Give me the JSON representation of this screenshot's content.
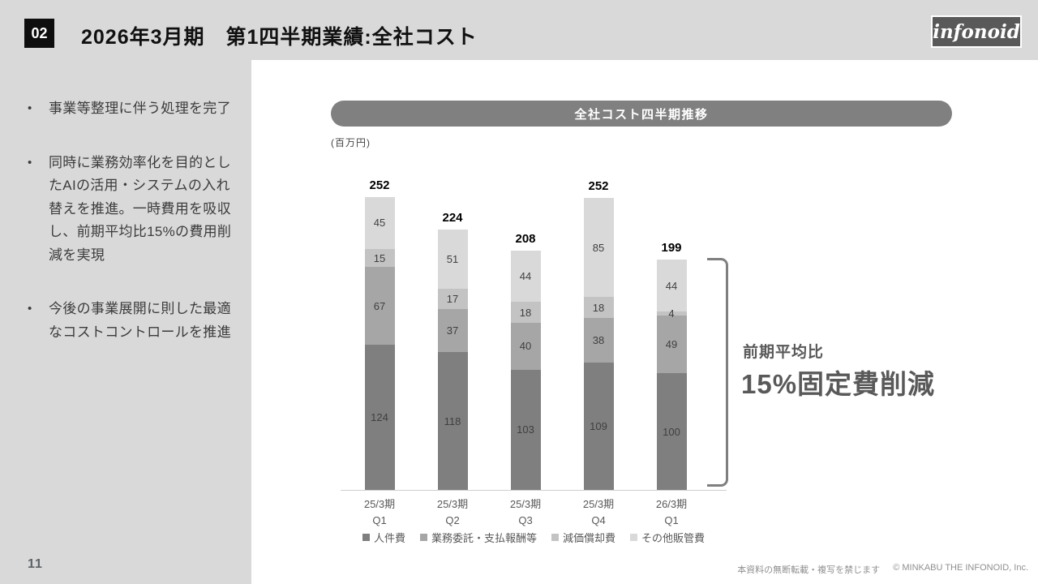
{
  "header": {
    "badge": "02",
    "title": "2026年3月期　第1四半期業績:全社コスト",
    "logo": "infonoid"
  },
  "sidebar": {
    "bullets": [
      "事業等整理に伴う処理を完了",
      "同時に業務効率化を目的としたAIの活用・システムの入れ替えを推進。一時費用を吸収し、前期平均比15%の費用削減を実現",
      "今後の事業展開に則した最適なコストコントロールを推進"
    ]
  },
  "chart_data": {
    "type": "bar",
    "stacked": true,
    "title": "全社コスト四半期推移",
    "unit_label": "(百万円)",
    "categories": [
      [
        "25/3期",
        "Q1"
      ],
      [
        "25/3期",
        "Q2"
      ],
      [
        "25/3期",
        "Q3"
      ],
      [
        "25/3期",
        "Q4"
      ],
      [
        "26/3期",
        "Q1"
      ]
    ],
    "totals": [
      252,
      224,
      208,
      252,
      199
    ],
    "series": [
      {
        "name": "人件費",
        "color": "#7f7f7f",
        "values": [
          124,
          118,
          103,
          109,
          100
        ]
      },
      {
        "name": "業務委託・支払報酬等",
        "color": "#a6a6a6",
        "values": [
          67,
          37,
          40,
          38,
          49
        ]
      },
      {
        "name": "減価償却費",
        "color": "#c3c3c3",
        "values": [
          15,
          17,
          18,
          18,
          4
        ]
      },
      {
        "name": "その他販管費",
        "color": "#d9d9d9",
        "values": [
          45,
          51,
          44,
          85,
          44
        ]
      }
    ],
    "ylim": [
      0,
      260
    ],
    "grid": false,
    "legend_position": "bottom"
  },
  "annotation": {
    "line1": "前期平均比",
    "line2": "15%固定費削減"
  },
  "footer": {
    "notice": "本資料の無断転載・複写を禁じます",
    "copyright": "© MINKABU THE INFONOID, Inc."
  },
  "page_number": "11"
}
